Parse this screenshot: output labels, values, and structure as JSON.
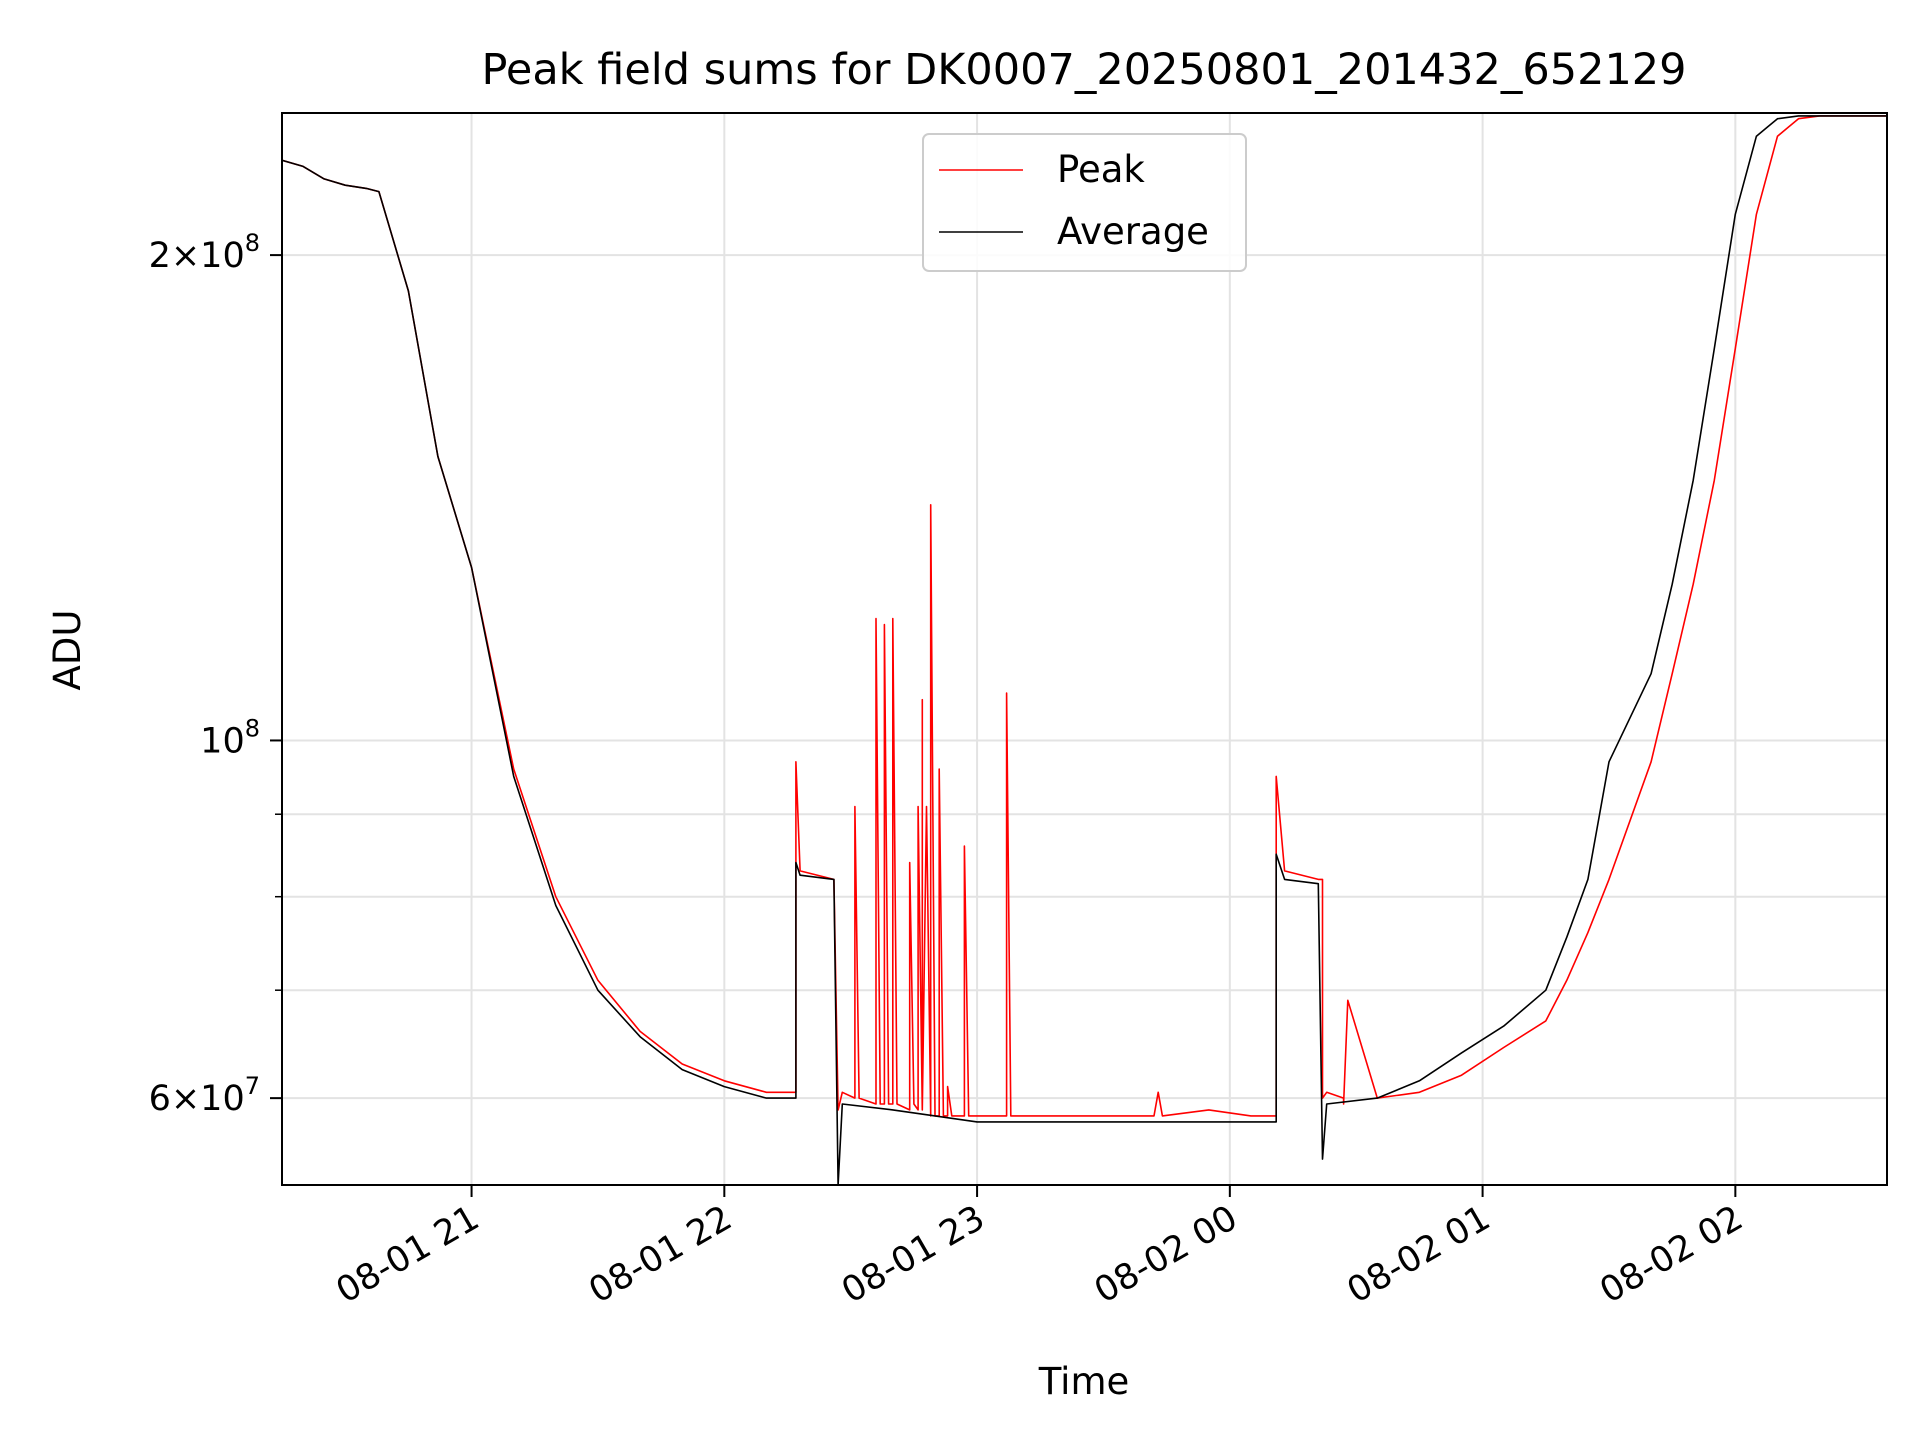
{
  "chart_data": {
    "type": "line",
    "title": "Peak field sums for DK0007_20250801_201432_652129",
    "xlabel": "Time",
    "ylabel": "ADU",
    "y_scale": "log",
    "ylim": [
      53000000,
      245000000
    ],
    "xlim": [
      "2025-08-01 20:15",
      "2025-08-02 02:36"
    ],
    "grid": true,
    "legend_position": "top-center",
    "x_ticks": [
      {
        "at": "2025-08-01 21:00",
        "label": "08-01 21"
      },
      {
        "at": "2025-08-01 22:00",
        "label": "08-01 22"
      },
      {
        "at": "2025-08-01 23:00",
        "label": "08-01 23"
      },
      {
        "at": "2025-08-02 00:00",
        "label": "08-02 00"
      },
      {
        "at": "2025-08-02 01:00",
        "label": "08-02 01"
      },
      {
        "at": "2025-08-02 02:00",
        "label": "08-02 02"
      }
    ],
    "y_ticks": [
      {
        "value": 60000000,
        "label_base": "6",
        "label_exp": "7",
        "has_mantissa": true
      },
      {
        "value": 100000000,
        "label_base": "",
        "label_exp": "8",
        "has_mantissa": false
      },
      {
        "value": 200000000,
        "label_base": "2",
        "label_exp": "8",
        "has_mantissa": true
      }
    ],
    "y_minor_ticks": [
      70000000,
      80000000,
      90000000
    ],
    "series": [
      {
        "name": "Peak",
        "color": "#ff0000",
        "x": [
          "2025-08-01 20:15",
          "2025-08-01 20:20",
          "2025-08-01 20:25",
          "2025-08-01 20:30",
          "2025-08-01 20:35",
          "2025-08-01 20:38",
          "2025-08-01 20:45",
          "2025-08-01 20:52",
          "2025-08-01 21:00",
          "2025-08-01 21:10",
          "2025-08-01 21:20",
          "2025-08-01 21:30",
          "2025-08-01 21:40",
          "2025-08-01 21:50",
          "2025-08-01 22:00",
          "2025-08-01 22:10",
          "2025-08-01 22:17",
          "2025-08-01 22:17",
          "2025-08-01 22:18",
          "2025-08-01 22:26",
          "2025-08-01 22:27",
          "2025-08-01 22:28",
          "2025-08-01 22:31",
          "2025-08-01 22:31",
          "2025-08-01 22:32",
          "2025-08-01 22:36",
          "2025-08-01 22:36",
          "2025-08-01 22:37",
          "2025-08-01 22:38",
          "2025-08-01 22:38",
          "2025-08-01 22:39",
          "2025-08-01 22:40",
          "2025-08-01 22:40",
          "2025-08-01 22:41",
          "2025-08-01 22:44",
          "2025-08-01 22:44",
          "2025-08-01 22:45",
          "2025-08-01 22:46",
          "2025-08-01 22:46",
          "2025-08-01 22:47",
          "2025-08-01 22:47",
          "2025-08-01 22:47",
          "2025-08-01 22:48",
          "2025-08-01 22:49",
          "2025-08-01 22:49",
          "2025-08-01 22:50",
          "2025-08-01 22:51",
          "2025-08-01 22:51",
          "2025-08-01 22:52",
          "2025-08-01 22:53",
          "2025-08-01 22:53",
          "2025-08-01 22:54",
          "2025-08-01 22:57",
          "2025-08-01 22:57",
          "2025-08-01 22:58",
          "2025-08-01 23:07",
          "2025-08-01 23:07",
          "2025-08-01 23:08",
          "2025-08-01 23:10",
          "2025-08-01 23:10",
          "2025-08-01 23:11",
          "2025-08-01 23:30",
          "2025-08-01 23:42",
          "2025-08-01 23:43",
          "2025-08-01 23:44",
          "2025-08-01 23:55",
          "2025-08-02 00:05",
          "2025-08-02 00:11",
          "2025-08-02 00:11",
          "2025-08-02 00:13",
          "2025-08-02 00:21",
          "2025-08-02 00:22",
          "2025-08-02 00:22",
          "2025-08-02 00:23",
          "2025-08-02 00:27",
          "2025-08-02 00:27",
          "2025-08-02 00:28",
          "2025-08-02 00:35",
          "2025-08-02 00:45",
          "2025-08-02 00:55",
          "2025-08-02 01:05",
          "2025-08-02 01:15",
          "2025-08-02 01:20",
          "2025-08-02 01:25",
          "2025-08-02 01:30",
          "2025-08-02 01:40",
          "2025-08-02 01:45",
          "2025-08-02 01:50",
          "2025-08-02 01:55",
          "2025-08-02 02:00",
          "2025-08-02 02:05",
          "2025-08-02 02:10",
          "2025-08-02 02:15",
          "2025-08-02 02:20",
          "2025-08-02 02:36"
        ],
        "values": [
          229000000,
          227000000,
          223000000,
          221000000,
          220000000,
          219000000,
          190000000,
          150000000,
          128000000,
          96000000,
          80000000,
          71000000,
          66000000,
          63000000,
          61500000,
          60500000,
          60500000,
          97000000,
          83000000,
          82000000,
          59000000,
          60500000,
          60000000,
          91000000,
          60000000,
          59500000,
          119000000,
          59500000,
          59500000,
          118000000,
          59500000,
          59500000,
          119000000,
          59500000,
          59000000,
          84000000,
          59500000,
          59000000,
          91000000,
          59000000,
          106000000,
          59000000,
          91000000,
          58500000,
          140000000,
          58500000,
          58500000,
          96000000,
          58500000,
          58500000,
          61000000,
          58500000,
          58500000,
          86000000,
          58500000,
          58500000,
          107000000,
          58500000,
          58500000,
          58500000,
          58500000,
          58500000,
          58500000,
          60500000,
          58500000,
          59000000,
          58500000,
          58500000,
          95000000,
          83000000,
          82000000,
          82000000,
          60000000,
          60500000,
          60000000,
          59500000,
          69000000,
          60000000,
          60500000,
          62000000,
          64500000,
          67000000,
          71000000,
          76000000,
          82000000,
          97000000,
          110000000,
          125000000,
          145000000,
          175000000,
          212000000,
          237000000,
          243000000,
          244000000,
          244000000
        ]
      },
      {
        "name": "Average",
        "color": "#000000",
        "x": [
          "2025-08-01 20:15",
          "2025-08-01 20:20",
          "2025-08-01 20:25",
          "2025-08-01 20:30",
          "2025-08-01 20:35",
          "2025-08-01 20:38",
          "2025-08-01 20:45",
          "2025-08-01 20:52",
          "2025-08-01 21:00",
          "2025-08-01 21:10",
          "2025-08-01 21:20",
          "2025-08-01 21:30",
          "2025-08-01 21:40",
          "2025-08-01 21:50",
          "2025-08-01 22:00",
          "2025-08-01 22:10",
          "2025-08-01 22:17",
          "2025-08-01 22:17",
          "2025-08-01 22:18",
          "2025-08-01 22:26",
          "2025-08-01 22:27",
          "2025-08-01 22:28",
          "2025-08-01 22:40",
          "2025-08-01 22:50",
          "2025-08-01 23:00",
          "2025-08-01 23:10",
          "2025-08-01 23:30",
          "2025-08-01 23:50",
          "2025-08-02 00:11",
          "2025-08-02 00:11",
          "2025-08-02 00:13",
          "2025-08-02 00:21",
          "2025-08-02 00:22",
          "2025-08-02 00:23",
          "2025-08-02 00:35",
          "2025-08-02 00:45",
          "2025-08-02 00:55",
          "2025-08-02 01:05",
          "2025-08-02 01:15",
          "2025-08-02 01:20",
          "2025-08-02 01:25",
          "2025-08-02 01:30",
          "2025-08-02 01:40",
          "2025-08-02 01:45",
          "2025-08-02 01:50",
          "2025-08-02 01:55",
          "2025-08-02 02:00",
          "2025-08-02 02:05",
          "2025-08-02 02:10",
          "2025-08-02 02:15",
          "2025-08-02 02:20",
          "2025-08-02 02:36"
        ],
        "values": [
          229000000,
          227000000,
          223000000,
          221000000,
          220000000,
          219000000,
          190000000,
          150000000,
          128000000,
          95000000,
          79000000,
          70000000,
          65500000,
          62500000,
          61000000,
          60000000,
          60000000,
          84000000,
          82500000,
          82000000,
          53000000,
          59500000,
          59000000,
          58500000,
          58000000,
          58000000,
          58000000,
          58000000,
          58000000,
          85000000,
          82000000,
          81500000,
          55000000,
          59500000,
          60000000,
          61500000,
          64000000,
          66500000,
          70000000,
          75500000,
          82000000,
          97000000,
          110000000,
          125000000,
          145000000,
          175000000,
          212000000,
          237000000,
          243000000,
          244000000,
          244000000,
          244000000
        ]
      }
    ]
  }
}
